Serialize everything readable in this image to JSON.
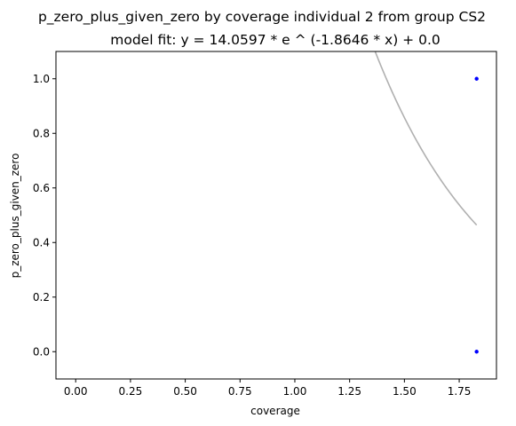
{
  "chart_data": {
    "type": "scatter",
    "title": "p_zero_plus_given_zero by coverage individual 2 from group CS2",
    "subtitle": "model fit: y = 14.0597 * e ^ (-1.8646 * x) + 0.0",
    "xlabel": "coverage",
    "ylabel": "p_zero_plus_given_zero",
    "xlim": [
      -0.09,
      1.92
    ],
    "ylim": [
      -0.1,
      1.1
    ],
    "xticks": [
      "0.00",
      "0.25",
      "0.50",
      "0.75",
      "1.00",
      "1.25",
      "1.50",
      "1.75"
    ],
    "yticks": [
      "0.0",
      "0.2",
      "0.4",
      "0.6",
      "0.8",
      "1.0"
    ],
    "grid": false,
    "points": [
      {
        "x": 1.8295,
        "y": 1.0
      },
      {
        "x": 1.8295,
        "y": 0.0
      }
    ],
    "fit": {
      "a": 14.0597,
      "b": -1.8646,
      "c": 0.0,
      "x_end": 1.8295
    },
    "colors": {
      "points": "#0000ff",
      "fit": "#b0b0b0"
    }
  }
}
